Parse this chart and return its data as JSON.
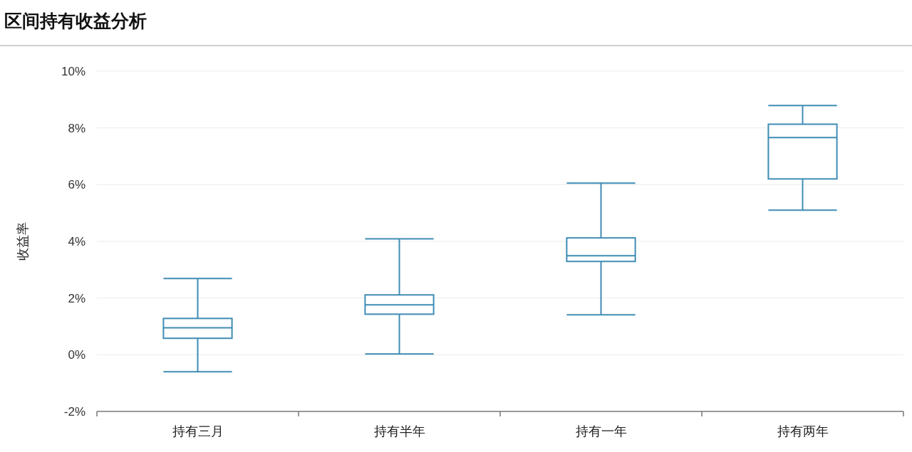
{
  "chart_data": {
    "type": "box",
    "title": "区间持有收益分析",
    "ylabel": "收益率",
    "categories": [
      "持有三月",
      "持有半年",
      "持有一年",
      "持有两年"
    ],
    "color": "#3f8cb4",
    "boxes": [
      {
        "low": -0.6,
        "q1": 0.58,
        "median": 0.95,
        "q3": 1.28,
        "high": 2.69
      },
      {
        "low": 0.03,
        "q1": 1.43,
        "median": 1.76,
        "q3": 2.11,
        "high": 4.09
      },
      {
        "low": 1.41,
        "q1": 3.29,
        "median": 3.49,
        "q3": 4.12,
        "high": 6.05
      },
      {
        "low": 5.1,
        "q1": 6.2,
        "median": 7.66,
        "q3": 8.13,
        "high": 8.79
      }
    ],
    "ylim": [
      -2,
      10
    ],
    "yticks": [
      {
        "value": -2,
        "label": "-2%"
      },
      {
        "value": 0,
        "label": "0%"
      },
      {
        "value": 2,
        "label": "2%"
      },
      {
        "value": 4,
        "label": "4%"
      },
      {
        "value": 6,
        "label": "6%"
      },
      {
        "value": 8,
        "label": "8%"
      },
      {
        "value": 10,
        "label": "10%"
      }
    ],
    "grid": "y"
  }
}
